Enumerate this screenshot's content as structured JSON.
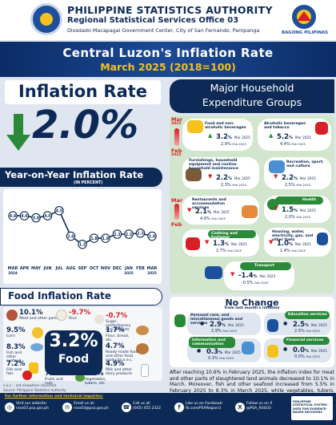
{
  "header": {
    "title": "PHILIPPINE STATISTICS AUTHORITY",
    "subtitle": "Regional Statistical Services Office 03",
    "address": "Diosdado Macapagal Government Center, City of San Fernando, Pampanga",
    "logo_right_text": "BAGONG PILIPINAS"
  },
  "banner": {
    "title": "Central Luzon's Inflation Rate",
    "period": "March 2025 (2018=100)"
  },
  "inflation": {
    "title": "Inflation Rate",
    "value": "2.0%"
  },
  "yoy": {
    "title": "Year-on-Year Inflation Rate",
    "note": "(IN PERCENT)"
  },
  "chart_data": {
    "type": "line",
    "title": "Year-on-Year Inflation Rate",
    "ylabel": "(IN PERCENT)",
    "categories": [
      "MAR 2024",
      "APR",
      "MAY",
      "JUN",
      "JUL",
      "AUG",
      "SEP",
      "OCT",
      "NOV",
      "DEC",
      "JAN 2025",
      "FEB",
      "MAR 2025"
    ],
    "tick_labels": [
      [
        "MAR",
        "2024"
      ],
      [
        "APR"
      ],
      [
        "MAY"
      ],
      [
        "JUN"
      ],
      [
        "JUL"
      ],
      [
        "AUG"
      ],
      [
        "SEP"
      ],
      [
        "OCT"
      ],
      [
        "NOV"
      ],
      [
        "DEC"
      ],
      [
        "JAN",
        "2025"
      ],
      [
        "FEB"
      ],
      [
        "MAR",
        "2025"
      ]
    ],
    "values": [
      4.0,
      4.0,
      3.8,
      4.0,
      4.5,
      2.0,
      1.2,
      1.8,
      1.8,
      2.2,
      2.2,
      2.3,
      2.0
    ],
    "data_labels": [
      "4.0",
      "4.0",
      "3.8",
      "4.0",
      "4.5",
      "2.0",
      "1.2",
      "1.8",
      "1.8",
      "2.2",
      "2.2",
      "2.3",
      "2.0"
    ],
    "ylim": [
      0,
      5.5
    ],
    "grid": false,
    "colors": {
      "line": "#0d2a57",
      "marker": "#ffffff",
      "label": "#0d2a57"
    }
  },
  "food": {
    "title": "Food Inflation Rate",
    "value": "3.2%",
    "label": "Food",
    "items": [
      {
        "value": "10.1%",
        "label": "Meat and other parts",
        "dir": "up"
      },
      {
        "value": "-9.7%",
        "label": "Rice",
        "dir": "dn"
      },
      {
        "value": "-0.7%",
        "label": "Sugar, confectionery and desserts",
        "dir": "dn"
      },
      {
        "value": "9.5%",
        "label": "Corn",
        "dir": "up"
      },
      {
        "value": "1.7%",
        "label": "Flour, bread, etc.",
        "dir": "up"
      },
      {
        "value": "8.3%",
        "label": "Fish and other seafood",
        "dir": "up"
      },
      {
        "value": "4.7%",
        "label": "Ready-made food and other food products n.e.c.",
        "dir": "up"
      },
      {
        "value": "7.2%",
        "label": "Oils and fats",
        "dir": "up"
      },
      {
        "value": "4.9%",
        "label": "Milk and other dairy products",
        "dir": "up"
      },
      {
        "value": "7.2%",
        "label": "Fruits and nuts",
        "dir": "up"
      },
      {
        "value": "5.9%",
        "label": "Vegetables, tubers, etc.",
        "dir": "up"
      }
    ],
    "note1": "n.e.c. - not elsewhere classified",
    "note2": "Source: Philippine Statistics Authority"
  },
  "mhe": {
    "title_line1": "Major Household",
    "title_line2": "Expenditure Groups",
    "mar_label": "Mar",
    "mar_year": "2025",
    "feb_label": "Feb",
    "feb_year": "2025",
    "groups": [
      {
        "name": "Food and non-alcoholic beverages",
        "mar": "3.2",
        "feb": "2.9",
        "dir": "up"
      },
      {
        "name": "Alcoholic beverages and tobacco",
        "mar": "5.2",
        "feb": "4.4",
        "dir": "up"
      },
      {
        "name": "Furnishings, household equipment and routine household maintenance",
        "mar": "2.2",
        "feb": "2.3",
        "dir": "dn"
      },
      {
        "name": "Recreation, sport, and culture",
        "mar": "2.2",
        "feb": "2.5",
        "dir": "dn"
      },
      {
        "name": "Restaurants and accommodation services",
        "mar": "2.1",
        "feb": "4.6",
        "dir": "dn"
      },
      {
        "name": "Health",
        "mar": "1.5",
        "feb": "2.0",
        "dir": "dn"
      },
      {
        "name": "Clothing and footwear",
        "mar": "1.3",
        "feb": "1.7",
        "dir": "dn"
      },
      {
        "name": "Housing, water, electricity, gas, and other fuels",
        "mar": "1.0",
        "feb": "1.4",
        "dir": "dn"
      },
      {
        "name": "Transport",
        "mar": "-1.4",
        "feb": "-0.5",
        "dir": "dn"
      }
    ],
    "pct_sign": "%",
    "mar_tag": "Mar 2025",
    "feb_tag": "Feb 2025"
  },
  "no_change": {
    "title": "No Change",
    "subtitle": "from last month's inflation",
    "items": [
      {
        "name": "Personal care, and miscellaneous goods and services",
        "mar": "2.9",
        "feb": "2.9"
      },
      {
        "name": "Education services",
        "mar": "2.5",
        "feb": "2.5"
      },
      {
        "name": "Information and communication",
        "mar": "0.3",
        "feb": "0.3"
      },
      {
        "name": "Financial services",
        "mar": "0.0",
        "feb": "0.0"
      }
    ]
  },
  "paragraph": "After reaching 10.6% in February 2025, the inflation index for meat and other parts of slaughtered land animals decreased to 10.1% in March. Moreover, fish and other seafood increased from 5.5% in February 2025 to 8.3% in March 2025, while vegetables, tubers, etc. decreased from 9.5% to 5.9%.",
  "footer": {
    "heading": "For further information and technical inquiries:",
    "website_label": "Visit our website:",
    "website": "rsso03.psa.gov.ph",
    "email_label": "Email us at:",
    "email": "rsso03@psa.gov.ph",
    "phone_label": "Call us at:",
    "phone": "(045) 455 2322",
    "fb_label": "Like us on Facebook:",
    "fb": "fb.com/PSARegion3",
    "x_label": "Follow us on X",
    "x": "@PSA_RSSO3",
    "logo_text": "PHILIPPINE STATISTICAL SYSTEM · DATA FOR EVIDENCE-BASED DECISIONS"
  }
}
